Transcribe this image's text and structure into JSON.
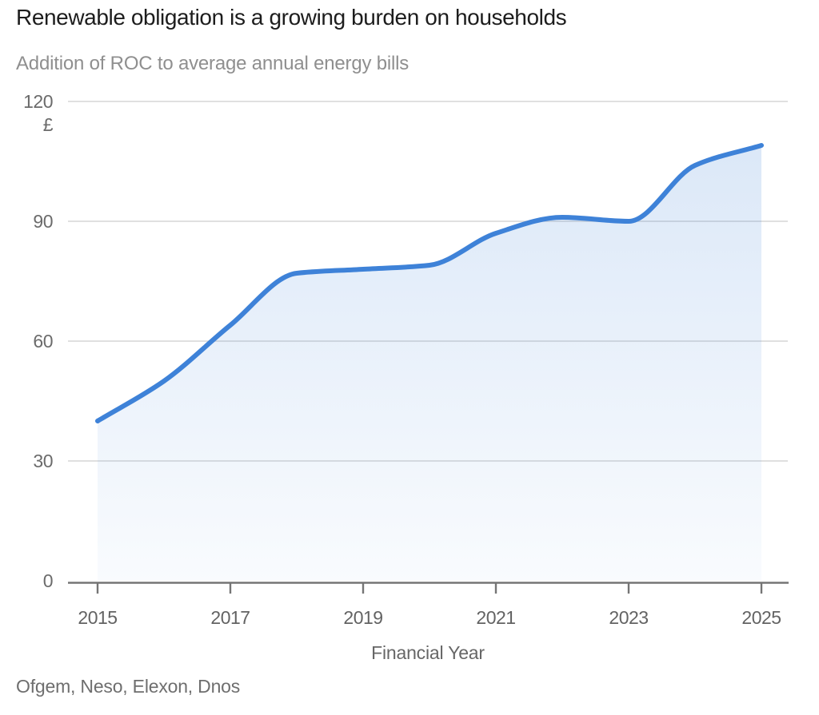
{
  "header": {
    "title": "Renewable obligation is a growing burden on households",
    "subtitle": "Addition of ROC to average annual energy bills"
  },
  "chart_data": {
    "type": "area",
    "title": "Renewable obligation is a growing burden on households",
    "subtitle": "Addition of ROC to average annual energy bills",
    "x": [
      2015,
      2016,
      2017,
      2018,
      2019,
      2020,
      2021,
      2022,
      2023,
      2024,
      2025
    ],
    "series": [
      {
        "name": "Addition of ROC to average annual energy bills",
        "values": [
          40,
          50,
          64,
          77,
          78,
          79,
          87,
          91,
          90,
          104,
          109
        ]
      }
    ],
    "xlabel": "Financial Year",
    "ylabel": "£",
    "ylim": [
      0,
      120
    ],
    "yticks": [
      0,
      30,
      60,
      90,
      120
    ],
    "xticks": [
      2015,
      2017,
      2019,
      2021,
      2023,
      2025
    ],
    "grid": true,
    "legend_position": "none",
    "curve": "monotone",
    "colors": {
      "line": "#3e82d8",
      "fill_top": "rgba(62,130,216,0.20)",
      "fill_bottom": "rgba(62,130,216,0.03)",
      "grid": "#d6d6d6",
      "axis": "#757575",
      "tick_label": "#6b6b6b",
      "title": "#1d1d1d",
      "subtitle": "#8f8f8f"
    }
  },
  "axis": {
    "x_title": "Financial Year",
    "y_unit": "£"
  },
  "source": "Ofgem, Neso, Elexon, Dnos"
}
